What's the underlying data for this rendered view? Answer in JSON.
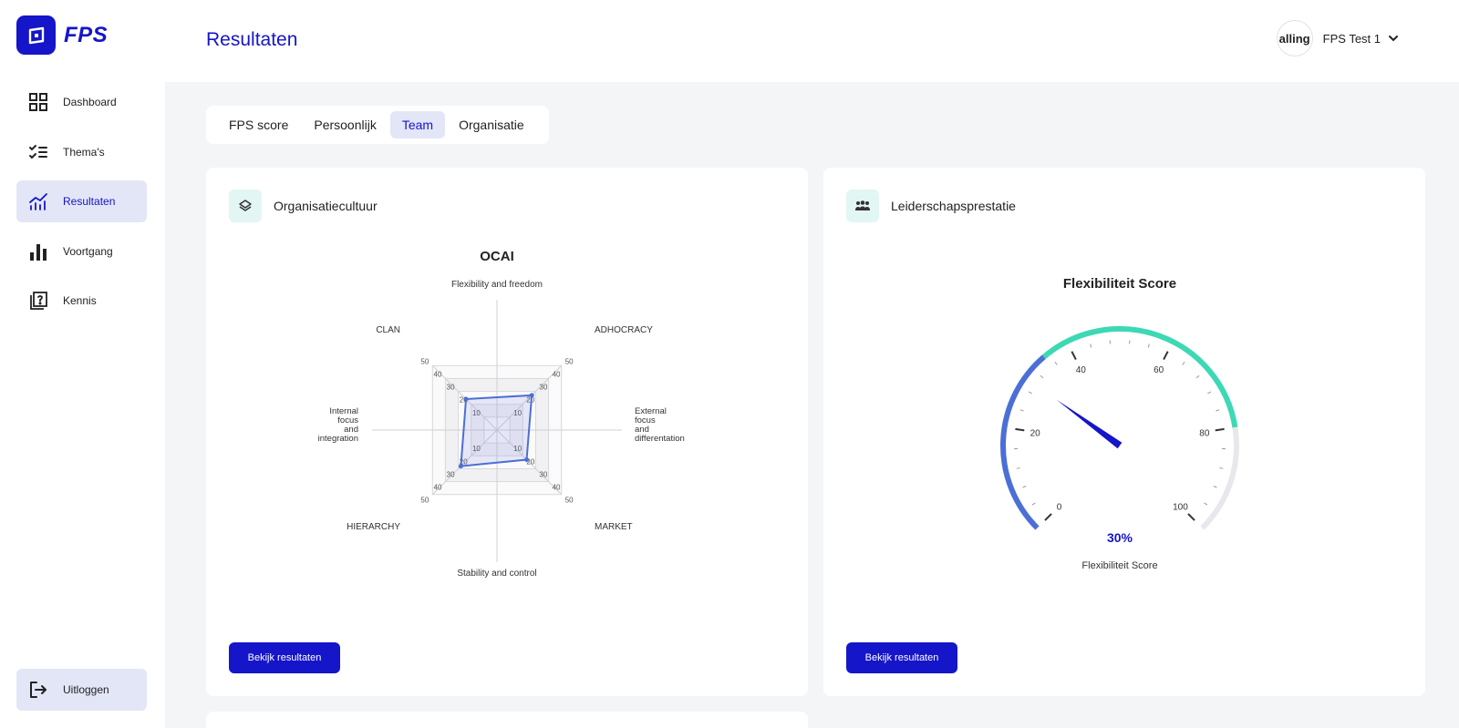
{
  "app": {
    "logo_text": "FPS"
  },
  "sidebar": {
    "items": [
      {
        "label": "Dashboard",
        "icon": "grid-icon",
        "active": false
      },
      {
        "label": "Thema's",
        "icon": "checklist-icon",
        "active": false
      },
      {
        "label": "Resultaten",
        "icon": "chart-icon",
        "active": true
      },
      {
        "label": "Voortgang",
        "icon": "bar-chart-icon",
        "active": false
      },
      {
        "label": "Kennis",
        "icon": "help-book-icon",
        "active": false
      }
    ],
    "logout_label": "Uitloggen"
  },
  "header": {
    "title": "Resultaten",
    "avatar_text": "alling",
    "user_name": "FPS Test 1"
  },
  "tabs": [
    {
      "label": "FPS score",
      "active": false
    },
    {
      "label": "Persoonlijk",
      "active": false
    },
    {
      "label": "Team",
      "active": true
    },
    {
      "label": "Organisatie",
      "active": false
    }
  ],
  "cards": {
    "culture": {
      "title": "Organisatiecultuur",
      "button": "Bekijk resultaten"
    },
    "leadership": {
      "title": "Leiderschapsprestatie",
      "button": "Bekijk resultaten"
    }
  },
  "colors": {
    "primary": "#1515c9",
    "accent_teal": "#3dd8b4",
    "gauge_blue": "#4c6fd6",
    "active_bg": "#e3e6f7"
  },
  "chart_data": [
    {
      "type": "radar",
      "title": "OCAI",
      "axis_labels": {
        "top": "Flexibility and freedom",
        "bottom": "Stability and control",
        "left": [
          "Internal",
          "focus",
          "and",
          "integration"
        ],
        "right": [
          "External",
          "focus",
          "and",
          "differentation"
        ]
      },
      "corners": [
        "CLAN",
        "ADHOCRACY",
        "MARKET",
        "HIERARCHY"
      ],
      "ticks": [
        10,
        20,
        30,
        40,
        50
      ],
      "range": [
        0,
        50
      ],
      "values": {
        "CLAN": 24,
        "ADHOCRACY": 27,
        "MARKET": 23,
        "HIERARCHY": 28
      }
    },
    {
      "type": "gauge",
      "title": "Flexibiliteit Score",
      "label": "Flexibiliteit Score",
      "value": 30,
      "value_text": "30%",
      "range": [
        0,
        100
      ],
      "ticks": [
        0,
        20,
        40,
        60,
        80,
        100
      ],
      "bands": [
        {
          "from": 0,
          "to": 35,
          "color": "#4c6fd6"
        },
        {
          "from": 35,
          "to": 80,
          "color": "#3dd8b4"
        },
        {
          "from": 80,
          "to": 100,
          "color": "#e6e8ec"
        }
      ]
    }
  ]
}
